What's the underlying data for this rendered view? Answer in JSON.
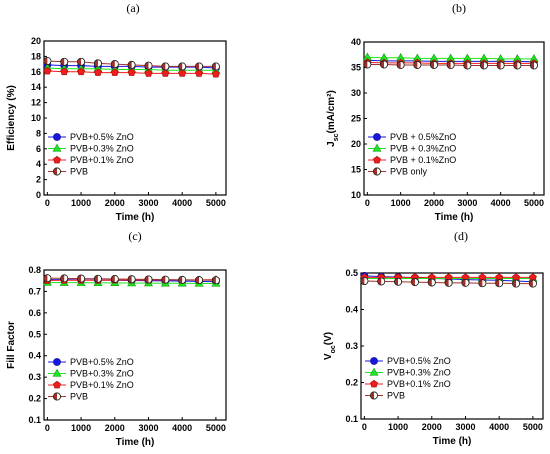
{
  "chart_data": [
    {
      "panel": "(a)",
      "type": "line",
      "xlabel": "Time (h)",
      "ylabel": "Efficiency (%)",
      "ylabel_sub": "",
      "ylabel_rest": "",
      "xlim": [
        -100,
        5300
      ],
      "ylim": [
        0,
        20
      ],
      "xticks": [
        0,
        1000,
        2000,
        3000,
        4000,
        5000
      ],
      "yticks": [
        0,
        2,
        4,
        6,
        8,
        10,
        12,
        14,
        16,
        18,
        20
      ],
      "x": [
        0,
        500,
        1000,
        1500,
        2000,
        2500,
        3000,
        3500,
        4000,
        4500,
        5000
      ],
      "legend_position": "lower-left",
      "series": [
        {
          "name": "PVB+0.5% ZnO",
          "marker": "circle",
          "color": "#1515e6",
          "values": [
            16.9,
            16.8,
            16.8,
            16.7,
            16.7,
            16.7,
            16.6,
            16.6,
            16.6,
            16.6,
            16.5
          ]
        },
        {
          "name": "PVB+0.3% ZnO",
          "marker": "triangle",
          "color": "#1ee61e",
          "values": [
            16.5,
            16.4,
            16.4,
            16.4,
            16.3,
            16.3,
            16.3,
            16.2,
            16.2,
            16.2,
            16.2
          ]
        },
        {
          "name": "PVB+0.1% ZnO",
          "marker": "pentagon",
          "color": "#f01c1c",
          "values": [
            16.1,
            16.0,
            16.0,
            15.9,
            15.9,
            15.9,
            15.8,
            15.8,
            15.8,
            15.8,
            15.7
          ]
        },
        {
          "name": "PVB",
          "marker": "half",
          "color": "#a0302a",
          "values": [
            17.4,
            17.3,
            17.3,
            17.1,
            17.0,
            16.9,
            16.8,
            16.7,
            16.7,
            16.7,
            16.7
          ]
        }
      ]
    },
    {
      "panel": "(b)",
      "type": "line",
      "xlabel": "Time (h)",
      "ylabel": "J",
      "ylabel_sub": "sc",
      "ylabel_rest": "(mA/cm²)",
      "xlim": [
        -100,
        5300
      ],
      "ylim": [
        10,
        40
      ],
      "xticks": [
        0,
        1000,
        2000,
        3000,
        4000,
        5000
      ],
      "yticks": [
        10,
        15,
        20,
        25,
        30,
        35,
        40
      ],
      "x": [
        0,
        500,
        1000,
        1500,
        2000,
        2500,
        3000,
        3500,
        4000,
        4500,
        5000
      ],
      "legend_position": "lower-left",
      "series": [
        {
          "name": "PVB + 0.5%ZnO",
          "marker": "circle",
          "color": "#1515e6",
          "values": [
            36.4,
            36.3,
            36.3,
            36.3,
            36.2,
            36.2,
            36.2,
            36.2,
            36.2,
            36.2,
            36.1
          ]
        },
        {
          "name": "PVB + 0.3%ZnO",
          "marker": "triangle",
          "color": "#1ee61e",
          "values": [
            37.0,
            36.9,
            36.9,
            36.8,
            36.8,
            36.8,
            36.8,
            36.8,
            36.7,
            36.7,
            36.7
          ]
        },
        {
          "name": "PVB + 0.1%ZnO",
          "marker": "pentagon",
          "color": "#f01c1c",
          "values": [
            36.0,
            35.9,
            35.9,
            35.9,
            35.8,
            35.8,
            35.8,
            35.8,
            35.8,
            35.8,
            35.8
          ]
        },
        {
          "name": "PVB only",
          "marker": "half",
          "color": "#a0302a",
          "values": [
            35.6,
            35.6,
            35.5,
            35.5,
            35.5,
            35.5,
            35.4,
            35.4,
            35.4,
            35.4,
            35.4
          ]
        }
      ]
    },
    {
      "panel": "(c)",
      "type": "line",
      "xlabel": "Time (h)",
      "ylabel": "Fill Factor",
      "ylabel_sub": "",
      "ylabel_rest": "",
      "xlim": [
        -100,
        5300
      ],
      "ylim": [
        0.1,
        0.8
      ],
      "xticks": [
        0,
        1000,
        2000,
        3000,
        4000,
        5000
      ],
      "yticks": [
        0.1,
        0.2,
        0.3,
        0.4,
        0.5,
        0.6,
        0.7,
        0.8
      ],
      "x": [
        0,
        500,
        1000,
        1500,
        2000,
        2500,
        3000,
        3500,
        4000,
        4500,
        5000
      ],
      "legend_position": "lower-left",
      "series": [
        {
          "name": "PVB+0.5% ZnO",
          "marker": "circle",
          "color": "#1515e6",
          "values": [
            0.755,
            0.755,
            0.754,
            0.753,
            0.752,
            0.751,
            0.75,
            0.749,
            0.748,
            0.747,
            0.745
          ]
        },
        {
          "name": "PVB+0.3% ZnO",
          "marker": "triangle",
          "color": "#1ee61e",
          "values": [
            0.742,
            0.741,
            0.741,
            0.74,
            0.74,
            0.739,
            0.739,
            0.738,
            0.738,
            0.737,
            0.737
          ]
        },
        {
          "name": "PVB+0.1% ZnO",
          "marker": "pentagon",
          "color": "#f01c1c",
          "values": [
            0.751,
            0.752,
            0.752,
            0.752,
            0.753,
            0.753,
            0.753,
            0.754,
            0.754,
            0.754,
            0.755
          ]
        },
        {
          "name": "PVB",
          "marker": "half",
          "color": "#a0302a",
          "values": [
            0.762,
            0.761,
            0.76,
            0.759,
            0.758,
            0.757,
            0.756,
            0.755,
            0.754,
            0.753,
            0.752
          ]
        }
      ]
    },
    {
      "panel": "(d)",
      "type": "line",
      "xlabel": "Time (h)",
      "ylabel": "V",
      "ylabel_sub": "oc",
      "ylabel_rest": "(V)",
      "xlim": [
        -100,
        5300
      ],
      "ylim": [
        0.1,
        0.5
      ],
      "xticks": [
        0,
        1000,
        2000,
        3000,
        4000,
        5000
      ],
      "yticks": [
        0.1,
        0.2,
        0.3,
        0.4,
        0.5
      ],
      "x": [
        0,
        500,
        1000,
        1500,
        2000,
        2500,
        3000,
        3500,
        4000,
        4500,
        5000
      ],
      "legend_position": "lower-left",
      "series": [
        {
          "name": "PVB+0.5% ZnO",
          "marker": "circle",
          "color": "#1515e6",
          "values": [
            0.492,
            0.49,
            0.489,
            0.487,
            0.485,
            0.484,
            0.482,
            0.481,
            0.48,
            0.478,
            0.476
          ]
        },
        {
          "name": "PVB+0.3% ZnO",
          "marker": "triangle",
          "color": "#1ee61e",
          "values": [
            0.485,
            0.485,
            0.485,
            0.485,
            0.485,
            0.485,
            0.485,
            0.485,
            0.485,
            0.485,
            0.485
          ]
        },
        {
          "name": "PVB+0.1% ZnO",
          "marker": "pentagon",
          "color": "#f01c1c",
          "values": [
            0.488,
            0.488,
            0.488,
            0.488,
            0.488,
            0.488,
            0.488,
            0.488,
            0.488,
            0.488,
            0.488
          ]
        },
        {
          "name": "PVB",
          "marker": "half",
          "color": "#a0302a",
          "values": [
            0.478,
            0.477,
            0.476,
            0.475,
            0.474,
            0.473,
            0.473,
            0.472,
            0.472,
            0.471,
            0.471
          ]
        }
      ]
    }
  ]
}
